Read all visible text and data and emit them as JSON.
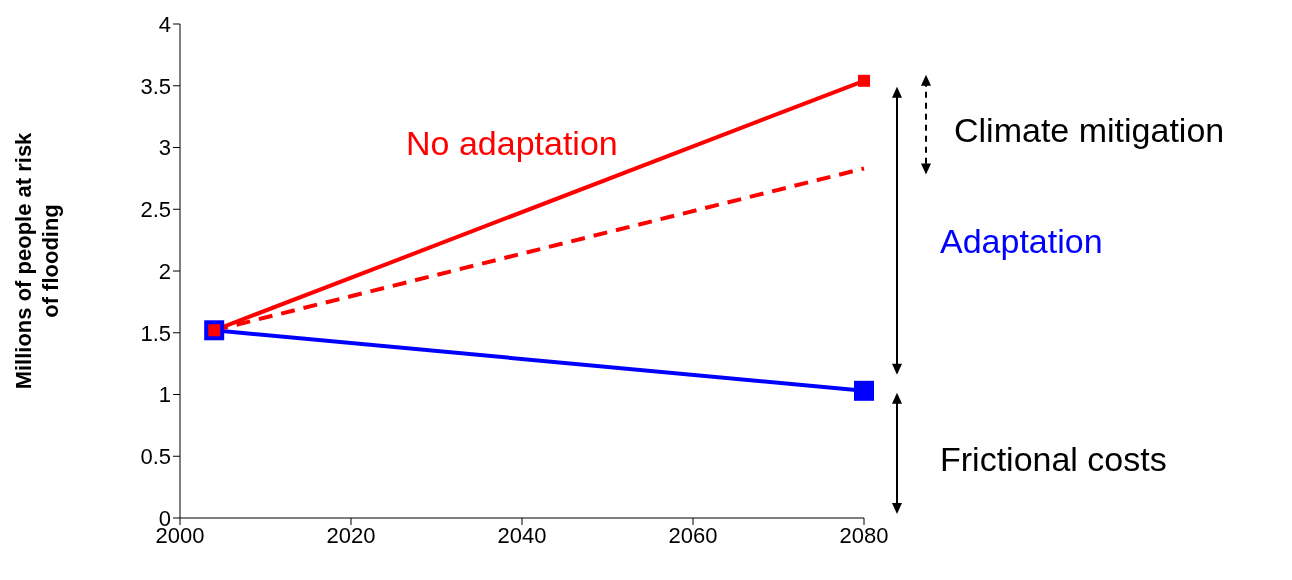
{
  "chart_data": {
    "type": "line",
    "ylabel": "Millions of people at risk of flooding",
    "x": [
      2004,
      2080
    ],
    "series": [
      {
        "name": "No adaptation",
        "color": "#ff0000",
        "values": [
          1.52,
          3.54
        ],
        "line_style": "solid",
        "marker": "square"
      },
      {
        "color": "#ff0000",
        "values": [
          1.52,
          2.83
        ],
        "line_style": "dashed",
        "marker": "none"
      },
      {
        "name": "Adaptation",
        "color": "#0000ff",
        "values": [
          1.52,
          1.03
        ],
        "line_style": "solid",
        "marker": "square"
      }
    ],
    "annotations": [
      "Climate mitigation",
      "Frictional costs"
    ],
    "xlim": [
      2000,
      2080
    ],
    "xticks": [
      2000,
      2020,
      2040,
      2060,
      2080
    ],
    "ylim": [
      0,
      4
    ],
    "yticks": [
      0,
      0.5,
      1,
      1.5,
      2,
      2.5,
      3,
      3.5,
      4
    ],
    "grid": false
  }
}
